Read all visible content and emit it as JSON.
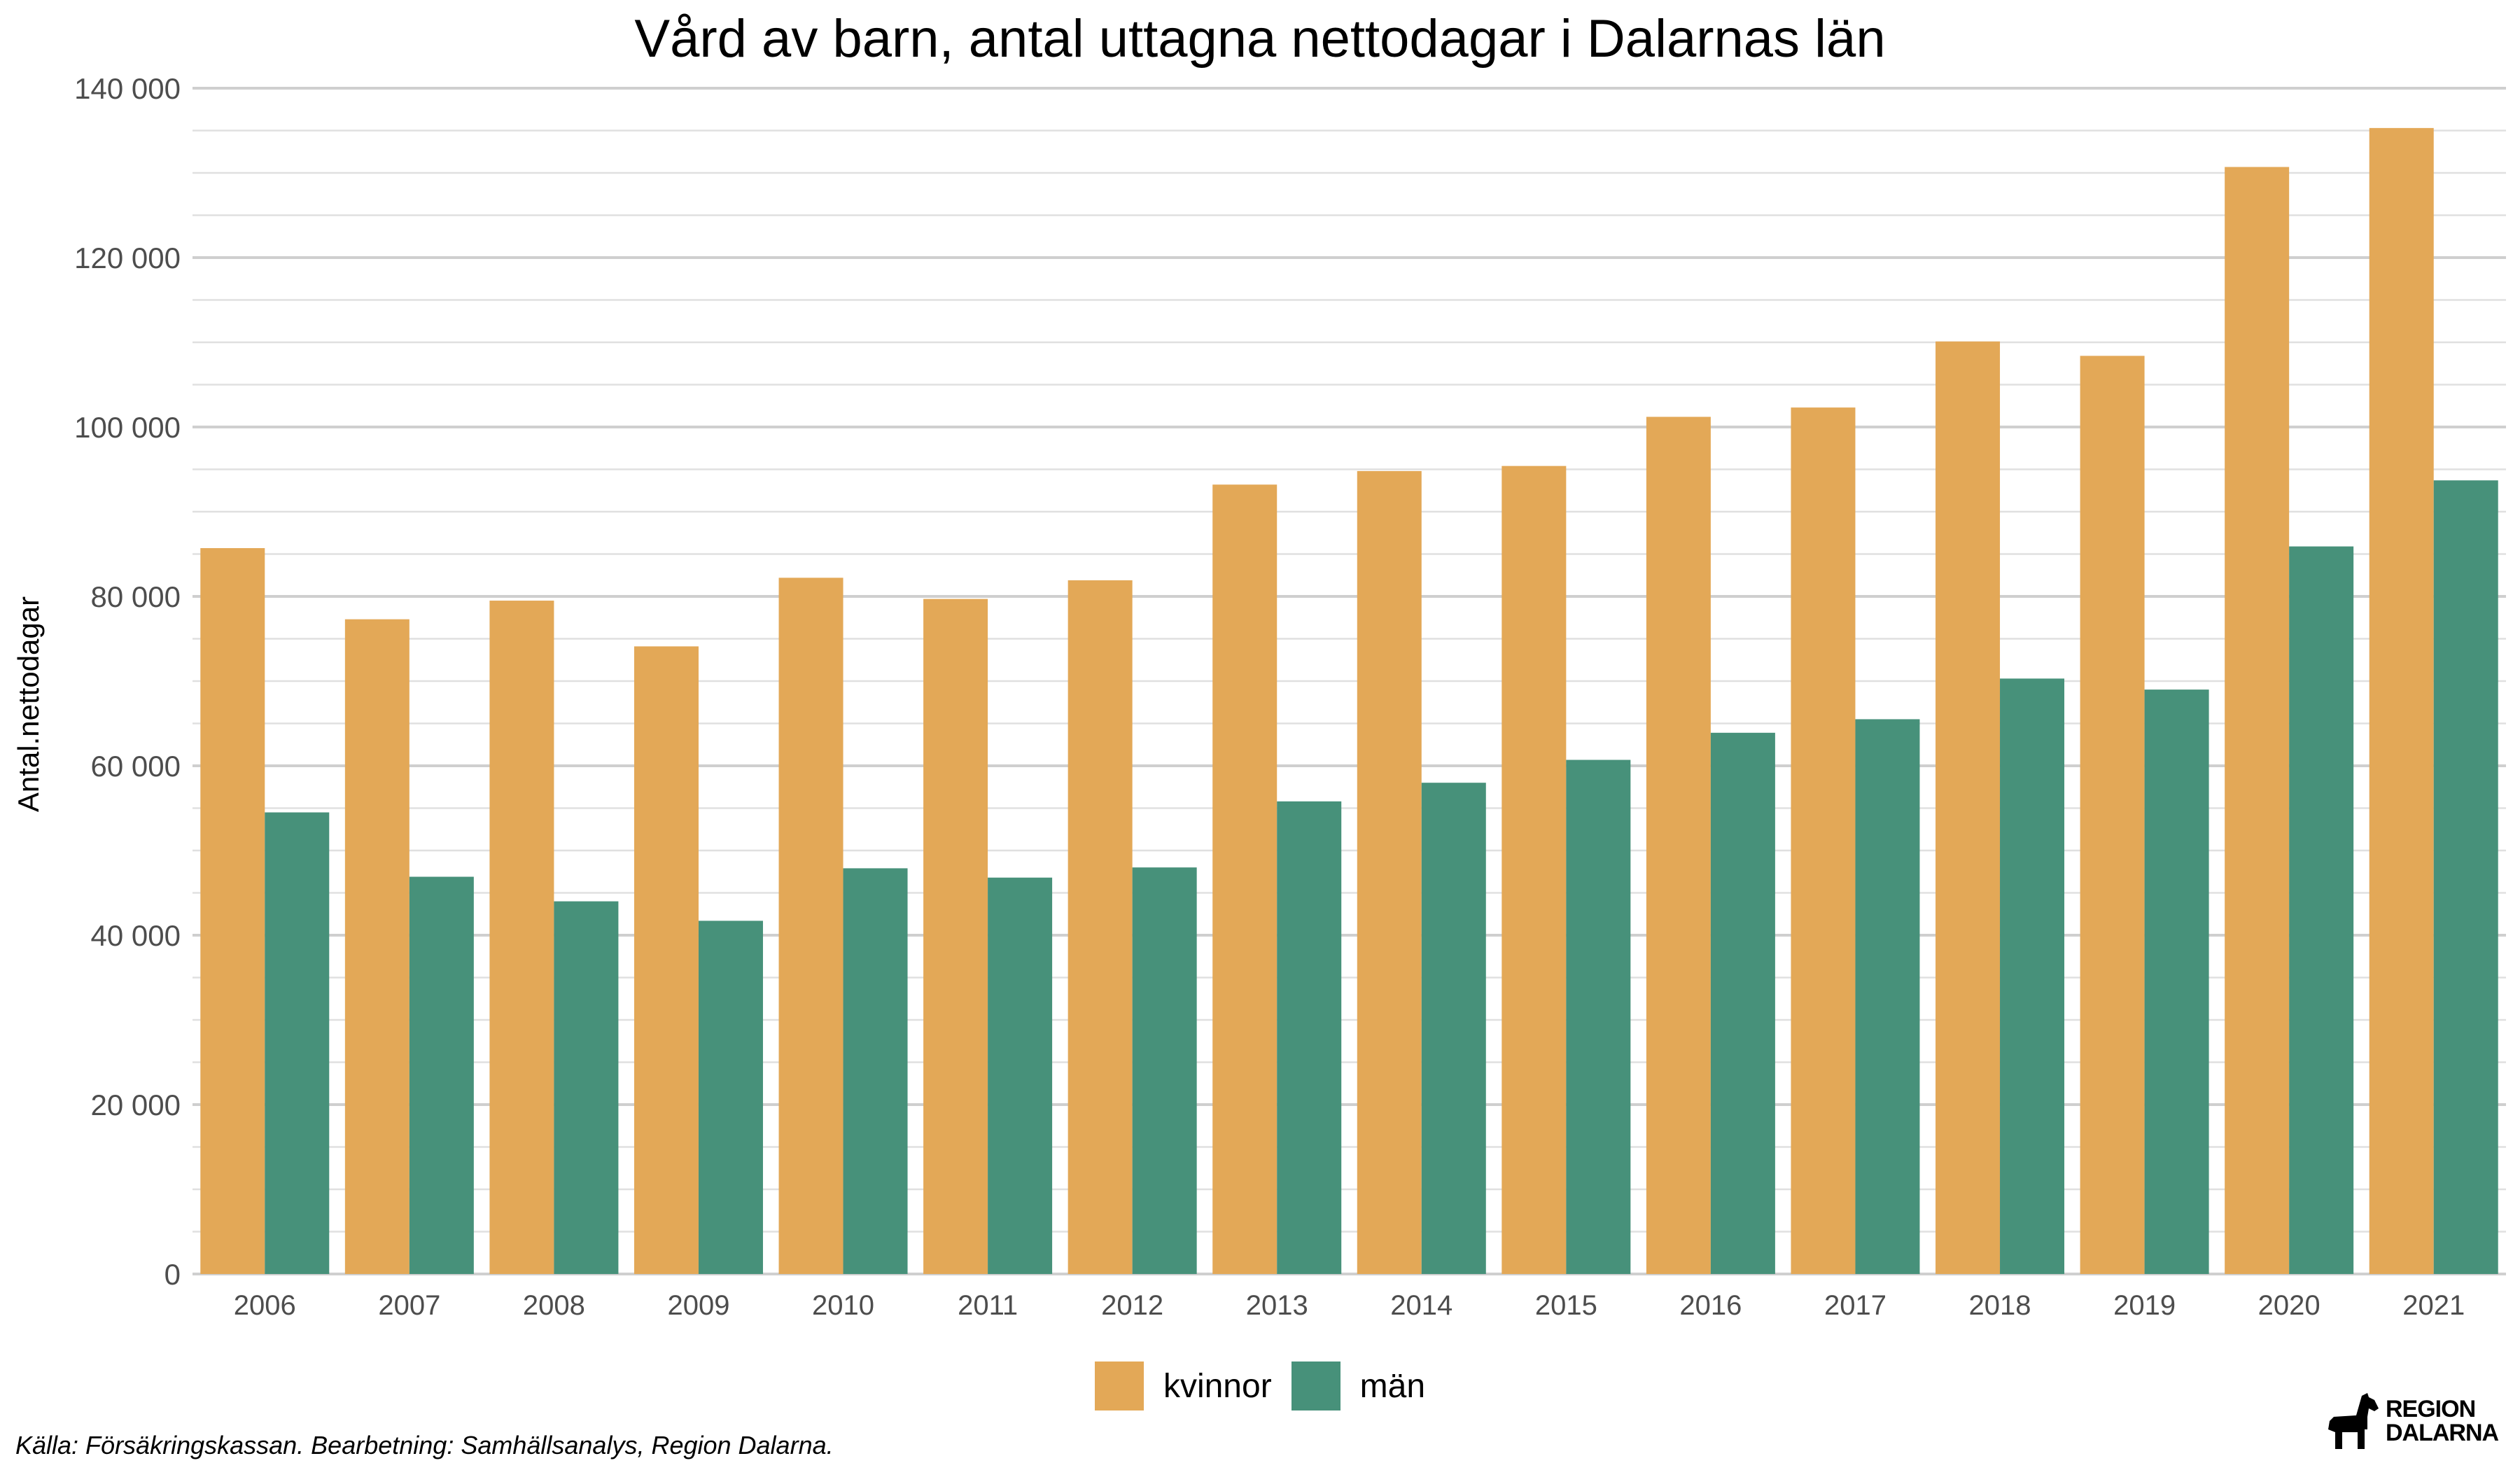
{
  "chart_data": {
    "type": "bar",
    "title": "Vård av barn, antal uttagna nettodagar i Dalarnas län",
    "xlabel": "",
    "ylabel": "Antal.nettodagar",
    "categories": [
      "2006",
      "2007",
      "2008",
      "2009",
      "2010",
      "2011",
      "2012",
      "2013",
      "2014",
      "2015",
      "2016",
      "2017",
      "2018",
      "2019",
      "2020",
      "2021"
    ],
    "series": [
      {
        "name": "kvinnor",
        "color": "#E3A857",
        "values": [
          85700,
          77300,
          79500,
          74100,
          82200,
          79700,
          81900,
          93200,
          94800,
          95400,
          101200,
          102300,
          110100,
          108400,
          130700,
          135300
        ]
      },
      {
        "name": "män",
        "color": "#47917A",
        "values": [
          54500,
          46900,
          44000,
          41700,
          47900,
          46800,
          48000,
          55800,
          58000,
          60700,
          63900,
          65500,
          70300,
          69000,
          85900,
          93700
        ]
      }
    ],
    "ylim": [
      0,
      140000
    ],
    "yticks": [
      0,
      20000,
      40000,
      60000,
      80000,
      100000,
      120000,
      140000
    ],
    "ytick_labels": [
      "0",
      "20 000",
      "40 000",
      "60 000",
      "80 000",
      "100 000",
      "120 000",
      "140 000"
    ],
    "grid": true,
    "legend_position": "bottom"
  },
  "caption": "Källa: Försäkringskassan. Bearbetning: Samhällsanalys, Region Dalarna.",
  "logo": {
    "line1": "REGION",
    "line2": "DALARNA",
    "icon": "dala-horse-icon"
  }
}
